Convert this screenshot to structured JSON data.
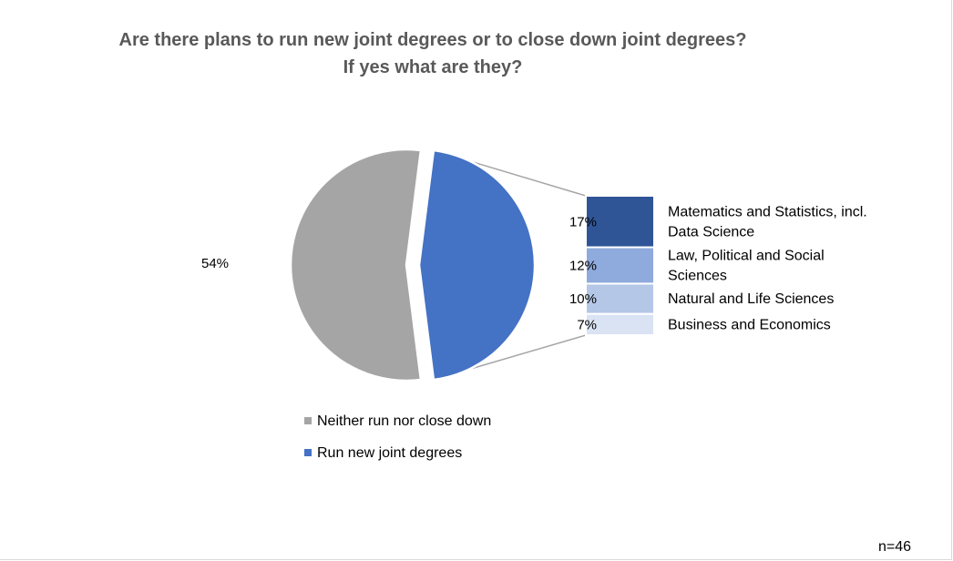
{
  "chart_data": {
    "type": "bar-of-pie",
    "title_lines": [
      "Are there plans to run new joint degrees or to close down joint degrees?",
      "If yes what are they?"
    ],
    "pie": {
      "slices": [
        {
          "name": "Neither run nor close down",
          "value": 54,
          "label": "54%",
          "color": "#a5a5a5"
        },
        {
          "name": "Run new joint degrees",
          "value": 46,
          "label": "",
          "color": "#4472c4"
        }
      ]
    },
    "bar": {
      "segments": [
        {
          "name": "Matematics and Statistics, incl. Data Science",
          "label_lines": [
            "Matematics and Statistics, incl.",
            "Data Science"
          ],
          "value": 17,
          "value_label": "17%",
          "color": "#2f5597"
        },
        {
          "name": "Law, Political and Social Sciences",
          "label_lines": [
            "Law, Political and Social",
            "Sciences"
          ],
          "value": 12,
          "value_label": "12%",
          "color": "#8faadc"
        },
        {
          "name": "Natural and Life Sciences",
          "label_lines": [
            "Natural and Life Sciences"
          ],
          "value": 10,
          "value_label": "10%",
          "color": "#b4c7e7"
        },
        {
          "name": "Business and Economics",
          "label_lines": [
            "Business and Economics"
          ],
          "value": 7,
          "value_label": "7%",
          "color": "#dae3f3"
        }
      ]
    },
    "legend": {
      "placement": "bottom",
      "items": [
        {
          "label": "Neither run nor close down",
          "color": "#a5a5a5"
        },
        {
          "label": "Run new joint degrees",
          "color": "#4472c4"
        }
      ]
    },
    "note": "n=46"
  }
}
